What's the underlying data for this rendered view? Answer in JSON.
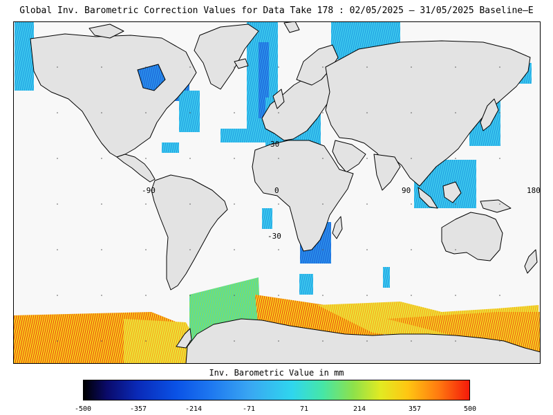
{
  "title": "Global Inv. Barometric Correction Values for Data Take 178 : 02/05/2025 – 31/05/2025 Baseline–E",
  "map": {
    "grid_labels": {
      "lat_30": "30",
      "lat_0": "0",
      "lat_m30": "-30",
      "lon_m90": "-90",
      "lon_90": "90",
      "lon_180": "180"
    },
    "colors": {
      "land": "#e3e3e3",
      "ocean": "#f8f8f8",
      "coast": "#000000"
    }
  },
  "colorbar": {
    "title": "Inv. Barometric Value in mm",
    "ticks": [
      "-500",
      "-357",
      "-214",
      "-71",
      "71",
      "214",
      "357",
      "500"
    ],
    "range": [
      -500,
      500
    ]
  }
}
